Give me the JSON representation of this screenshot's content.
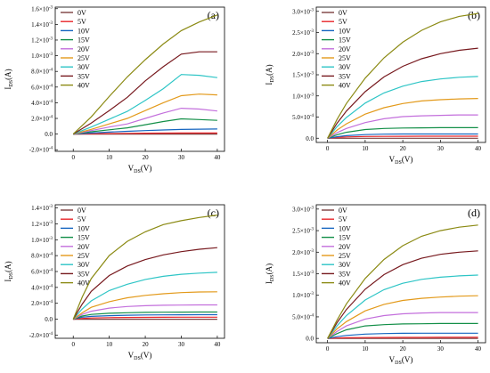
{
  "chart_data": [
    {
      "type": "line",
      "panel_label": "(a)",
      "xlabel": {
        "main": "V",
        "sub": "DS",
        "unit": "(V)"
      },
      "ylabel": {
        "main": "I",
        "sub": "DS",
        "unit": "(A)"
      },
      "xlim": [
        -5,
        42
      ],
      "ylim": [
        -0.00022,
        0.00162
      ],
      "xticks": [
        {
          "v": 0,
          "label": "0"
        },
        {
          "v": 10,
          "label": "10"
        },
        {
          "v": 20,
          "label": "20"
        },
        {
          "v": 30,
          "label": "30"
        },
        {
          "v": 40,
          "label": "40"
        }
      ],
      "yticks": [
        {
          "v": -0.0002,
          "mant": "-2.0",
          "exp": "-4"
        },
        {
          "v": 0,
          "mant": "0.0",
          "exp": ""
        },
        {
          "v": 0.0002,
          "mant": "2.0",
          "exp": "-4"
        },
        {
          "v": 0.0004,
          "mant": "4.0",
          "exp": "-4"
        },
        {
          "v": 0.0006,
          "mant": "6.0",
          "exp": "-4"
        },
        {
          "v": 0.0008,
          "mant": "8.0",
          "exp": "-4"
        },
        {
          "v": 0.001,
          "mant": "1.0",
          "exp": "-3"
        },
        {
          "v": 0.0012,
          "mant": "1.2",
          "exp": "-3"
        },
        {
          "v": 0.0014,
          "mant": "1.4",
          "exp": "-3"
        },
        {
          "v": 0.0016,
          "mant": "1.6",
          "exp": "-3"
        }
      ],
      "legend_position": "top-left",
      "grid": false,
      "x": [
        0,
        5,
        10,
        15,
        20,
        25,
        30,
        35,
        40
      ],
      "series": [
        {
          "name": "0V",
          "color": "#7b3f3f",
          "values": [
            0,
            0,
            0,
            0,
            0,
            0,
            0,
            0,
            0
          ]
        },
        {
          "name": "5V",
          "color": "#e8262b",
          "values": [
            0,
            4e-06,
            7e-06,
            1e-05,
            1.2e-05,
            1.3e-05,
            1.4e-05,
            1.4e-05,
            1.4e-05
          ]
        },
        {
          "name": "10V",
          "color": "#1565c0",
          "values": [
            0,
            1.4e-05,
            2.5e-05,
            3.5e-05,
            4.5e-05,
            5.3e-05,
            5.9e-05,
            6.3e-05,
            6.5e-05
          ]
        },
        {
          "name": "15V",
          "color": "#138f48",
          "values": [
            0,
            3e-05,
            5.5e-05,
            8e-05,
            0.00012,
            0.00016,
            0.000195,
            0.000185,
            0.000175
          ]
        },
        {
          "name": "20V",
          "color": "#c36fdc",
          "values": [
            0,
            4.5e-05,
            9e-05,
            0.00013,
            0.0002,
            0.00027,
            0.00033,
            0.00032,
            0.000295
          ]
        },
        {
          "name": "25V",
          "color": "#e39a1b",
          "values": [
            0,
            6e-05,
            0.00013,
            0.0002,
            0.0003,
            0.0004,
            0.00049,
            0.00051,
            0.0005
          ]
        },
        {
          "name": "30V",
          "color": "#2ec5c6",
          "values": [
            0,
            9e-05,
            0.00019,
            0.00029,
            0.00043,
            0.00058,
            0.00076,
            0.00075,
            0.00072
          ]
        },
        {
          "name": "35V",
          "color": "#77191e",
          "values": [
            0,
            0.00014,
            0.0003,
            0.00047,
            0.00068,
            0.00086,
            0.00102,
            0.00105,
            0.00105
          ]
        },
        {
          "name": "40V",
          "color": "#8b8a13",
          "values": [
            0,
            0.00022,
            0.00048,
            0.00073,
            0.00095,
            0.00115,
            0.00132,
            0.00143,
            0.00152
          ]
        }
      ]
    },
    {
      "type": "line",
      "panel_label": "(b)",
      "xlabel": {
        "main": "V",
        "sub": "DS",
        "unit": "(V)"
      },
      "ylabel": {
        "main": "I",
        "sub": "DS",
        "unit": "(A)"
      },
      "xlim": [
        -3,
        42
      ],
      "ylim": [
        -0.0001,
        0.0031
      ],
      "xticks": [
        {
          "v": 0,
          "label": "0"
        },
        {
          "v": 10,
          "label": "10"
        },
        {
          "v": 20,
          "label": "20"
        },
        {
          "v": 30,
          "label": "30"
        },
        {
          "v": 40,
          "label": "40"
        }
      ],
      "yticks": [
        {
          "v": 0,
          "mant": "0.0",
          "exp": ""
        },
        {
          "v": 0.0005,
          "mant": "5.0",
          "exp": "-4"
        },
        {
          "v": 0.001,
          "mant": "1.0",
          "exp": "-3"
        },
        {
          "v": 0.0015,
          "mant": "1.5",
          "exp": "-3"
        },
        {
          "v": 0.002,
          "mant": "2.0",
          "exp": "-3"
        },
        {
          "v": 0.0025,
          "mant": "2.5",
          "exp": "-3"
        },
        {
          "v": 0.003,
          "mant": "3.0",
          "exp": "-3"
        }
      ],
      "legend_position": "top-left",
      "grid": false,
      "x": [
        0,
        2.5,
        5,
        10,
        15,
        20,
        25,
        30,
        35,
        40
      ],
      "series": [
        {
          "name": "0V",
          "color": "#7b3f3f",
          "values": [
            0,
            0,
            0,
            0,
            0,
            0,
            0,
            0,
            0,
            0
          ]
        },
        {
          "name": "5V",
          "color": "#e8262b",
          "values": [
            0,
            1.8e-05,
            3e-05,
            4e-05,
            4.4e-05,
            4.6e-05,
            4.7e-05,
            4.8e-05,
            4.8e-05,
            4.8e-05
          ]
        },
        {
          "name": "10V",
          "color": "#1565c0",
          "values": [
            0,
            3.5e-05,
            6e-05,
            8.5e-05,
            9.5e-05,
            0.0001,
            0.0001,
            0.0001,
            0.0001,
            0.0001
          ]
        },
        {
          "name": "15V",
          "color": "#138f48",
          "values": [
            0,
            8e-05,
            0.00014,
            0.000205,
            0.00023,
            0.00024,
            0.000245,
            0.00025,
            0.00025,
            0.00025
          ]
        },
        {
          "name": "20V",
          "color": "#c36fdc",
          "values": [
            0,
            0.00013,
            0.00023,
            0.00037,
            0.00046,
            0.00051,
            0.00053,
            0.00054,
            0.00055,
            0.00055
          ]
        },
        {
          "name": "25V",
          "color": "#e39a1b",
          "values": [
            0,
            0.00019,
            0.00034,
            0.00057,
            0.00072,
            0.00082,
            0.00088,
            0.00091,
            0.00093,
            0.00094
          ]
        },
        {
          "name": "30V",
          "color": "#2ec5c6",
          "values": [
            0,
            0.00027,
            0.00049,
            0.00083,
            0.00107,
            0.00123,
            0.00134,
            0.0014,
            0.00144,
            0.00146
          ]
        },
        {
          "name": "35V",
          "color": "#77191e",
          "values": [
            0,
            0.00035,
            0.00064,
            0.0011,
            0.00145,
            0.0017,
            0.00188,
            0.002,
            0.00208,
            0.00213
          ]
        },
        {
          "name": "40V",
          "color": "#8b8a13",
          "values": [
            0,
            0.00044,
            0.00082,
            0.00142,
            0.0019,
            0.00227,
            0.00255,
            0.00275,
            0.00288,
            0.00295
          ]
        }
      ]
    },
    {
      "type": "line",
      "panel_label": "(c)",
      "xlabel": {
        "main": "V",
        "sub": "DS",
        "unit": "(V)"
      },
      "ylabel": {
        "main": "I",
        "sub": "DS",
        "unit": "(A)"
      },
      "xlim": [
        -5,
        42
      ],
      "ylim": [
        -0.00024,
        0.00144
      ],
      "xticks": [
        {
          "v": 0,
          "label": "0"
        },
        {
          "v": 10,
          "label": "10"
        },
        {
          "v": 20,
          "label": "20"
        },
        {
          "v": 30,
          "label": "30"
        },
        {
          "v": 40,
          "label": "40"
        }
      ],
      "yticks": [
        {
          "v": -0.0002,
          "mant": "-2.0",
          "exp": "-4"
        },
        {
          "v": 0,
          "mant": "0.0",
          "exp": ""
        },
        {
          "v": 0.0002,
          "mant": "2.0",
          "exp": "-4"
        },
        {
          "v": 0.0004,
          "mant": "4.0",
          "exp": "-4"
        },
        {
          "v": 0.0006,
          "mant": "6.0",
          "exp": "-4"
        },
        {
          "v": 0.0008,
          "mant": "8.0",
          "exp": "-4"
        },
        {
          "v": 0.001,
          "mant": "1.0",
          "exp": "-3"
        },
        {
          "v": 0.0012,
          "mant": "1.2",
          "exp": "-3"
        },
        {
          "v": 0.0014,
          "mant": "1.4",
          "exp": "-3"
        }
      ],
      "legend_position": "top-left",
      "grid": false,
      "x": [
        0,
        2.5,
        5,
        10,
        15,
        20,
        25,
        30,
        35,
        40
      ],
      "series": [
        {
          "name": "0V",
          "color": "#7b3f3f",
          "values": [
            0,
            0,
            0,
            0,
            0,
            0,
            0,
            0,
            0,
            0
          ]
        },
        {
          "name": "5V",
          "color": "#e8262b",
          "values": [
            0,
            1e-05,
            1.5e-05,
            2e-05,
            2.2e-05,
            2.3e-05,
            2.4e-05,
            2.5e-05,
            2.5e-05,
            2.5e-05
          ]
        },
        {
          "name": "10V",
          "color": "#1565c0",
          "values": [
            0,
            2.5e-05,
            3.5e-05,
            4.5e-05,
            5e-05,
            5.3e-05,
            5.5e-05,
            5.6e-05,
            5.7e-05,
            5.7e-05
          ]
        },
        {
          "name": "15V",
          "color": "#138f48",
          "values": [
            0,
            4e-05,
            6e-05,
            7.5e-05,
            8.2e-05,
            8.6e-05,
            8.8e-05,
            8.9e-05,
            9e-05,
            9e-05
          ]
        },
        {
          "name": "20V",
          "color": "#c36fdc",
          "values": [
            0,
            6e-05,
            0.0001,
            0.00014,
            0.00016,
            0.00017,
            0.000175,
            0.000178,
            0.00018,
            0.00018
          ]
        },
        {
          "name": "25V",
          "color": "#e39a1b",
          "values": [
            0,
            8e-05,
            0.00015,
            0.00022,
            0.00027,
            0.0003,
            0.00032,
            0.000335,
            0.000342,
            0.000345
          ]
        },
        {
          "name": "30V",
          "color": "#2ec5c6",
          "values": [
            0,
            0.00013,
            0.00023,
            0.00036,
            0.00044,
            0.0005,
            0.00054,
            0.000565,
            0.00058,
            0.00059
          ]
        },
        {
          "name": "35V",
          "color": "#77191e",
          "values": [
            0,
            0.00019,
            0.00035,
            0.00055,
            0.00067,
            0.00075,
            0.00081,
            0.00085,
            0.00088,
            0.0009
          ]
        },
        {
          "name": "40V",
          "color": "#8b8a13",
          "values": [
            0,
            0.00028,
            0.00051,
            0.0008,
            0.00098,
            0.0011,
            0.00119,
            0.00124,
            0.00128,
            0.00131
          ]
        }
      ]
    },
    {
      "type": "line",
      "panel_label": "(d)",
      "xlabel": {
        "main": "V",
        "sub": "DS",
        "unit": "(V)"
      },
      "ylabel": {
        "main": "I",
        "sub": "DS",
        "unit": "(A)"
      },
      "xlim": [
        -3,
        42
      ],
      "ylim": [
        -0.0001,
        0.0031
      ],
      "xticks": [
        {
          "v": 0,
          "label": "0"
        },
        {
          "v": 10,
          "label": "10"
        },
        {
          "v": 20,
          "label": "20"
        },
        {
          "v": 30,
          "label": "30"
        },
        {
          "v": 40,
          "label": "40"
        }
      ],
      "yticks": [
        {
          "v": 0,
          "mant": "0.0",
          "exp": ""
        },
        {
          "v": 0.0005,
          "mant": "5.0",
          "exp": "-4"
        },
        {
          "v": 0.001,
          "mant": "1.0",
          "exp": "-3"
        },
        {
          "v": 0.0015,
          "mant": "1.5",
          "exp": "-3"
        },
        {
          "v": 0.002,
          "mant": "2.0",
          "exp": "-3"
        },
        {
          "v": 0.0025,
          "mant": "2.5",
          "exp": "-3"
        },
        {
          "v": 0.003,
          "mant": "3.0",
          "exp": "-3"
        }
      ],
      "legend_position": "top-left",
      "grid": false,
      "x": [
        0,
        2.5,
        5,
        10,
        15,
        20,
        25,
        30,
        35,
        40
      ],
      "series": [
        {
          "name": "0V",
          "color": "#7b3f3f",
          "values": [
            0,
            0,
            0,
            0,
            0,
            0,
            0,
            0,
            0,
            0
          ]
        },
        {
          "name": "5V",
          "color": "#e8262b",
          "values": [
            0,
            1e-05,
            1.5e-05,
            2e-05,
            2.2e-05,
            2.3e-05,
            2.4e-05,
            2.5e-05,
            2.5e-05,
            2.5e-05
          ]
        },
        {
          "name": "10V",
          "color": "#1565c0",
          "values": [
            0,
            4e-05,
            7e-05,
            0.0001,
            0.000112,
            0.000118,
            0.00012,
            0.00012,
            0.00012,
            0.00012
          ]
        },
        {
          "name": "15V",
          "color": "#138f48",
          "values": [
            0,
            0.00011,
            0.0002,
            0.00029,
            0.00032,
            0.000335,
            0.00034,
            0.000345,
            0.000345,
            0.000345
          ]
        },
        {
          "name": "20V",
          "color": "#c36fdc",
          "values": [
            0,
            0.00016,
            0.00029,
            0.00045,
            0.00053,
            0.00057,
            0.00059,
            0.0006,
            0.0006,
            0.0006
          ]
        },
        {
          "name": "25V",
          "color": "#e39a1b",
          "values": [
            0,
            0.00022,
            0.00039,
            0.00064,
            0.00079,
            0.00088,
            0.00093,
            0.00096,
            0.00098,
            0.00099
          ]
        },
        {
          "name": "30V",
          "color": "#2ec5c6",
          "values": [
            0,
            0.00029,
            0.00053,
            0.00089,
            0.00113,
            0.00128,
            0.00137,
            0.00142,
            0.00145,
            0.00147
          ]
        },
        {
          "name": "35V",
          "color": "#77191e",
          "values": [
            0,
            0.00036,
            0.00067,
            0.00114,
            0.00148,
            0.00171,
            0.00186,
            0.00195,
            0.002,
            0.00203
          ]
        },
        {
          "name": "40V",
          "color": "#8b8a13",
          "values": [
            0,
            0.00042,
            0.0008,
            0.00139,
            0.00183,
            0.00215,
            0.00237,
            0.0025,
            0.00258,
            0.00263
          ]
        }
      ]
    }
  ]
}
